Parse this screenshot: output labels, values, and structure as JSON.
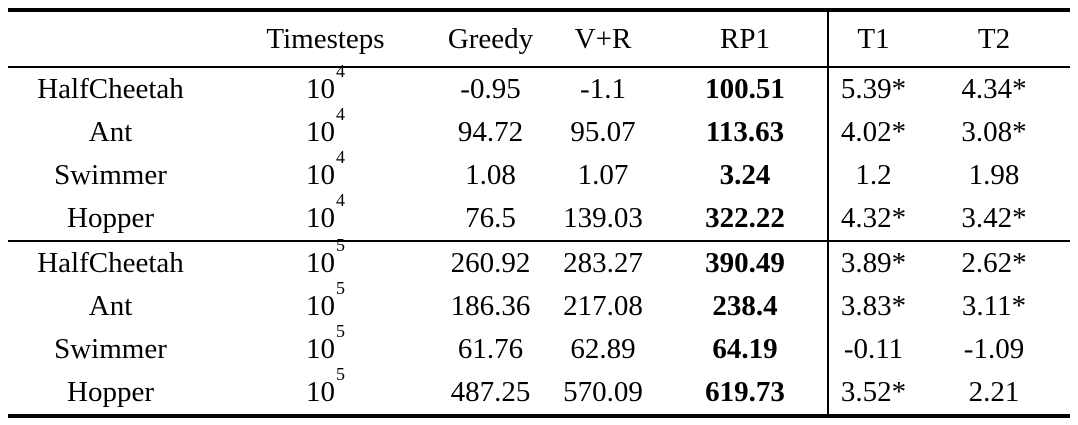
{
  "table": {
    "header": [
      "",
      "Timesteps",
      "Greedy",
      "V+R",
      "RP1",
      "T1",
      "T2"
    ],
    "groups": [
      {
        "rows": [
          {
            "env": "HalfCheetah",
            "ts_base": "10",
            "ts_exp": "4",
            "greedy": "-0.95",
            "vr": "-1.1",
            "rp1": "100.51",
            "t1": "5.39*",
            "t2": "4.34*"
          },
          {
            "env": "Ant",
            "ts_base": "10",
            "ts_exp": "4",
            "greedy": "94.72",
            "vr": "95.07",
            "rp1": "113.63",
            "t1": "4.02*",
            "t2": "3.08*"
          },
          {
            "env": "Swimmer",
            "ts_base": "10",
            "ts_exp": "4",
            "greedy": "1.08",
            "vr": "1.07",
            "rp1": "3.24",
            "t1": "1.2",
            "t2": "1.98"
          },
          {
            "env": "Hopper",
            "ts_base": "10",
            "ts_exp": "4",
            "greedy": "76.5",
            "vr": "139.03",
            "rp1": "322.22",
            "t1": "4.32*",
            "t2": "3.42*"
          }
        ]
      },
      {
        "rows": [
          {
            "env": "HalfCheetah",
            "ts_base": "10",
            "ts_exp": "5",
            "greedy": "260.92",
            "vr": "283.27",
            "rp1": "390.49",
            "t1": "3.89*",
            "t2": "2.62*"
          },
          {
            "env": "Ant",
            "ts_base": "10",
            "ts_exp": "5",
            "greedy": "186.36",
            "vr": "217.08",
            "rp1": "238.4",
            "t1": "3.83*",
            "t2": "3.11*"
          },
          {
            "env": "Swimmer",
            "ts_base": "10",
            "ts_exp": "5",
            "greedy": "61.76",
            "vr": "62.89",
            "rp1": "64.19",
            "t1": "-0.11",
            "t2": "-1.09"
          },
          {
            "env": "Hopper",
            "ts_base": "10",
            "ts_exp": "5",
            "greedy": "487.25",
            "vr": "570.09",
            "rp1": "619.73",
            "t1": "3.52*",
            "t2": "2.21"
          }
        ]
      }
    ],
    "colors": {
      "rule": "#000000",
      "text": "#000000",
      "background": "#ffffff"
    }
  }
}
